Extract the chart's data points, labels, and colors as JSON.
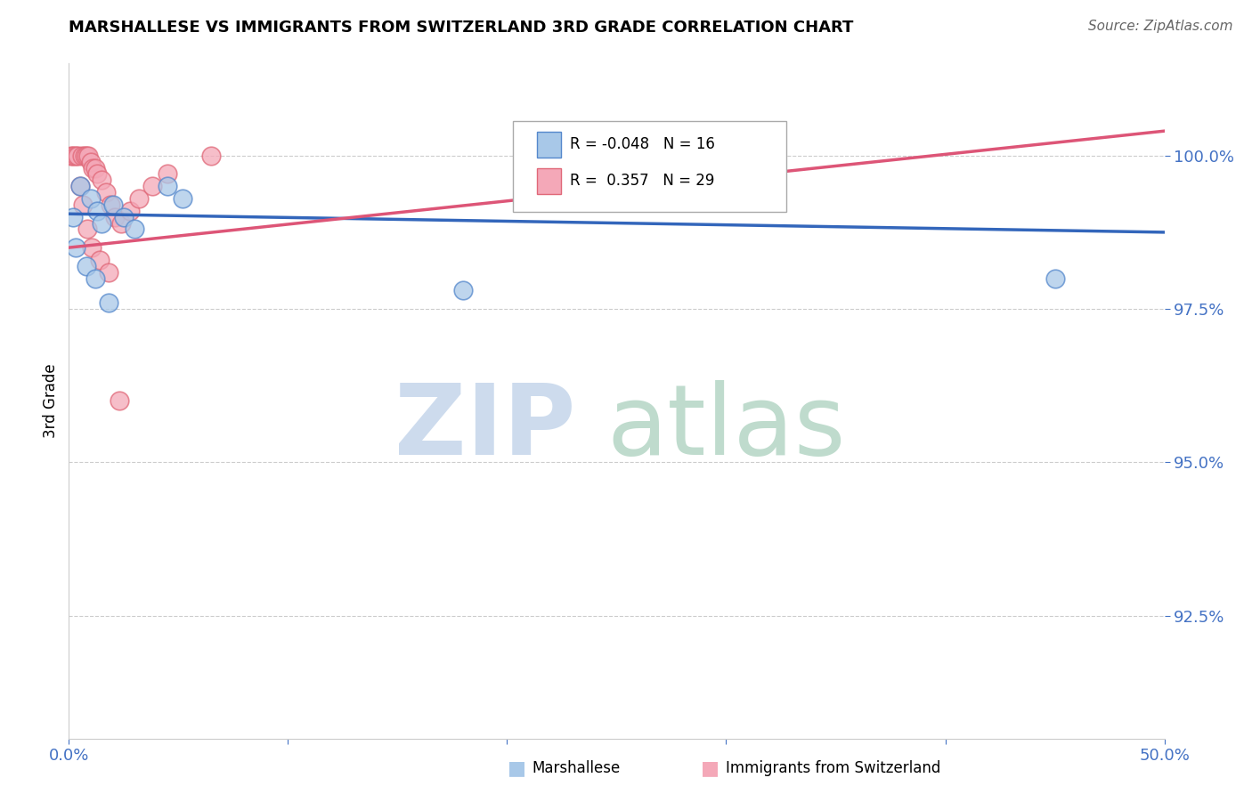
{
  "title": "MARSHALLESE VS IMMIGRANTS FROM SWITZERLAND 3RD GRADE CORRELATION CHART",
  "source": "Source: ZipAtlas.com",
  "ylabel": "3rd Grade",
  "xlim": [
    0.0,
    50.0
  ],
  "ylim": [
    90.5,
    101.5
  ],
  "yticks": [
    92.5,
    95.0,
    97.5,
    100.0
  ],
  "ytick_labels": [
    "92.5%",
    "95.0%",
    "97.5%",
    "100.0%"
  ],
  "blue_R": -0.048,
  "blue_N": 16,
  "pink_R": 0.357,
  "pink_N": 29,
  "blue_color": "#a8c8e8",
  "pink_color": "#f4a8b8",
  "blue_edge_color": "#5588cc",
  "pink_edge_color": "#e06878",
  "blue_line_color": "#3366bb",
  "pink_line_color": "#dd5577",
  "blue_points_x": [
    0.2,
    0.5,
    1.0,
    1.3,
    1.5,
    2.0,
    2.5,
    3.0,
    4.5,
    5.2,
    0.3,
    0.8,
    1.2,
    1.8,
    18.0,
    45.0
  ],
  "blue_points_y": [
    99.0,
    99.5,
    99.3,
    99.1,
    98.9,
    99.2,
    99.0,
    98.8,
    99.5,
    99.3,
    98.5,
    98.2,
    98.0,
    97.6,
    97.8,
    98.0
  ],
  "pink_points_x": [
    0.1,
    0.2,
    0.3,
    0.4,
    0.6,
    0.7,
    0.8,
    0.9,
    1.0,
    1.1,
    1.2,
    1.3,
    1.5,
    1.7,
    1.9,
    2.1,
    2.4,
    2.8,
    3.2,
    3.8,
    4.5,
    6.5,
    0.5,
    0.65,
    0.85,
    1.05,
    1.4,
    1.8,
    2.3
  ],
  "pink_points_y": [
    100.0,
    100.0,
    100.0,
    100.0,
    100.0,
    100.0,
    100.0,
    100.0,
    99.9,
    99.8,
    99.8,
    99.7,
    99.6,
    99.4,
    99.2,
    99.0,
    98.9,
    99.1,
    99.3,
    99.5,
    99.7,
    100.0,
    99.5,
    99.2,
    98.8,
    98.5,
    98.3,
    98.1,
    96.0
  ],
  "legend_blue_label": "Marshallese",
  "legend_pink_label": "Immigrants from Switzerland",
  "axis_color": "#4472c4",
  "watermark_zip_color": "#c8d8ec",
  "watermark_atlas_color": "#b8d8c8"
}
